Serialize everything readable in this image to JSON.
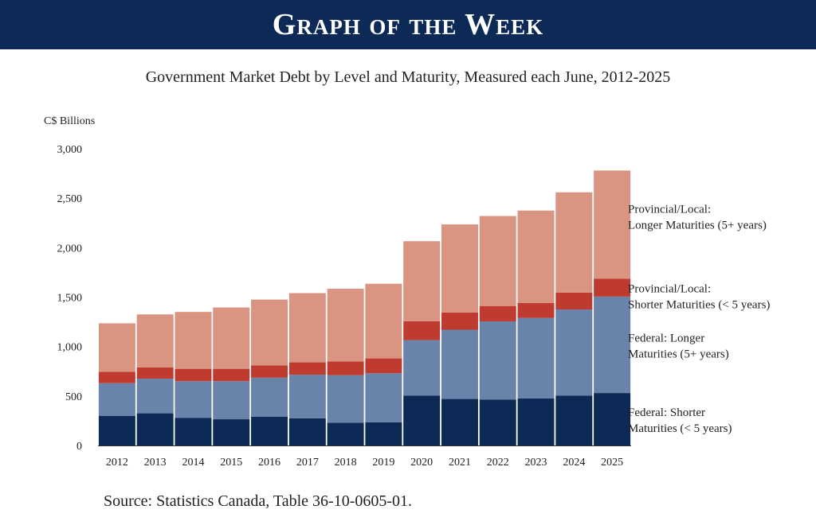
{
  "banner": {
    "title": "Graph of the Week"
  },
  "chart_title": "Government Market Debt by Level and Maturity, Measured each June, 2012-2025",
  "source": "Source: Statistics Canada, Table 36-10-0605-01.",
  "colors": {
    "banner_bg": "#0c2a55",
    "federal_short": "#0c2a55",
    "federal_long": "#6a83aa",
    "provincial_short": "#bf3b2f",
    "provincial_long": "#da9482"
  },
  "chart_data": {
    "type": "bar",
    "stacked": true,
    "title": "Government Market Debt by Level and Maturity, Measured each June, 2012-2025",
    "ylabel": "C$ Billions",
    "xlabel": "",
    "ylim": [
      0,
      3000
    ],
    "yticks": [
      0,
      500,
      1000,
      1500,
      2000,
      2500,
      3000
    ],
    "ytick_labels": [
      "0",
      "500",
      "1,000",
      "1,500",
      "2,000",
      "2,500",
      "3,000"
    ],
    "categories": [
      "2012",
      "2013",
      "2014",
      "2015",
      "2016",
      "2017",
      "2018",
      "2019",
      "2020",
      "2021",
      "2022",
      "2023",
      "2024",
      "2025"
    ],
    "legend_position": "right",
    "series": [
      {
        "name": "Federal: Shorter Maturities (< 5 years)",
        "label_lines": [
          "Federal: Shorter",
          "Maturities (< 5 years)"
        ],
        "color": "#0c2a55",
        "values": [
          300,
          325,
          280,
          265,
          290,
          275,
          230,
          235,
          505,
          470,
          465,
          475,
          505,
          530
        ]
      },
      {
        "name": "Federal: Longer Maturities (5+ years)",
        "label_lines": [
          "Federal: Longer",
          "Maturities (5+ years)"
        ],
        "color": "#6a83aa",
        "values": [
          330,
          350,
          370,
          385,
          395,
          440,
          480,
          495,
          560,
          700,
          790,
          815,
          870,
          975
        ]
      },
      {
        "name": "Provincial/Local: Shorter Maturities (< 5 years)",
        "label_lines": [
          "Provincial/Local:",
          "Shorter Maturities (< 5 years)"
        ],
        "color": "#bf3b2f",
        "values": [
          115,
          115,
          125,
          125,
          125,
          125,
          140,
          150,
          190,
          175,
          155,
          150,
          170,
          180
        ]
      },
      {
        "name": "Provincial/Local: Longer Maturities (5+ years)",
        "label_lines": [
          "Provincial/Local:",
          "Longer Maturities (5+ years)"
        ],
        "color": "#da9482",
        "values": [
          490,
          535,
          575,
          620,
          665,
          700,
          735,
          755,
          810,
          890,
          910,
          935,
          1015,
          1095
        ]
      }
    ]
  }
}
